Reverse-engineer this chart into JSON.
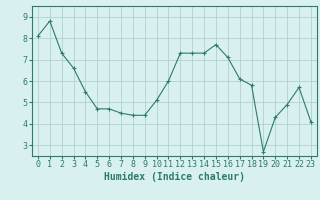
{
  "x": [
    0,
    1,
    2,
    3,
    4,
    5,
    6,
    7,
    8,
    9,
    10,
    11,
    12,
    13,
    14,
    15,
    16,
    17,
    18,
    19,
    20,
    21,
    22,
    23
  ],
  "y": [
    8.1,
    8.8,
    7.3,
    6.6,
    5.5,
    4.7,
    4.7,
    4.5,
    4.4,
    4.4,
    5.1,
    6.0,
    7.3,
    7.3,
    7.3,
    7.7,
    7.1,
    6.1,
    5.8,
    2.7,
    4.3,
    4.9,
    5.7,
    4.1
  ],
  "line_color": "#2d7a6e",
  "marker": "+",
  "marker_size": 3,
  "bg_color": "#d8f0f0",
  "grid_color": "#a8cccc",
  "axis_color": "#2d7a6e",
  "xlabel": "Humidex (Indice chaleur)",
  "ylim": [
    2.5,
    9.5
  ],
  "xlim": [
    -0.5,
    23.5
  ],
  "yticks": [
    3,
    4,
    5,
    6,
    7,
    8,
    9
  ],
  "xticks": [
    0,
    1,
    2,
    3,
    4,
    5,
    6,
    7,
    8,
    9,
    10,
    11,
    12,
    13,
    14,
    15,
    16,
    17,
    18,
    19,
    20,
    21,
    22,
    23
  ],
  "xlabel_fontsize": 7,
  "tick_fontsize": 6,
  "tick_color": "#2d7a6e",
  "linewidth": 0.8,
  "marker_edge_width": 0.8
}
